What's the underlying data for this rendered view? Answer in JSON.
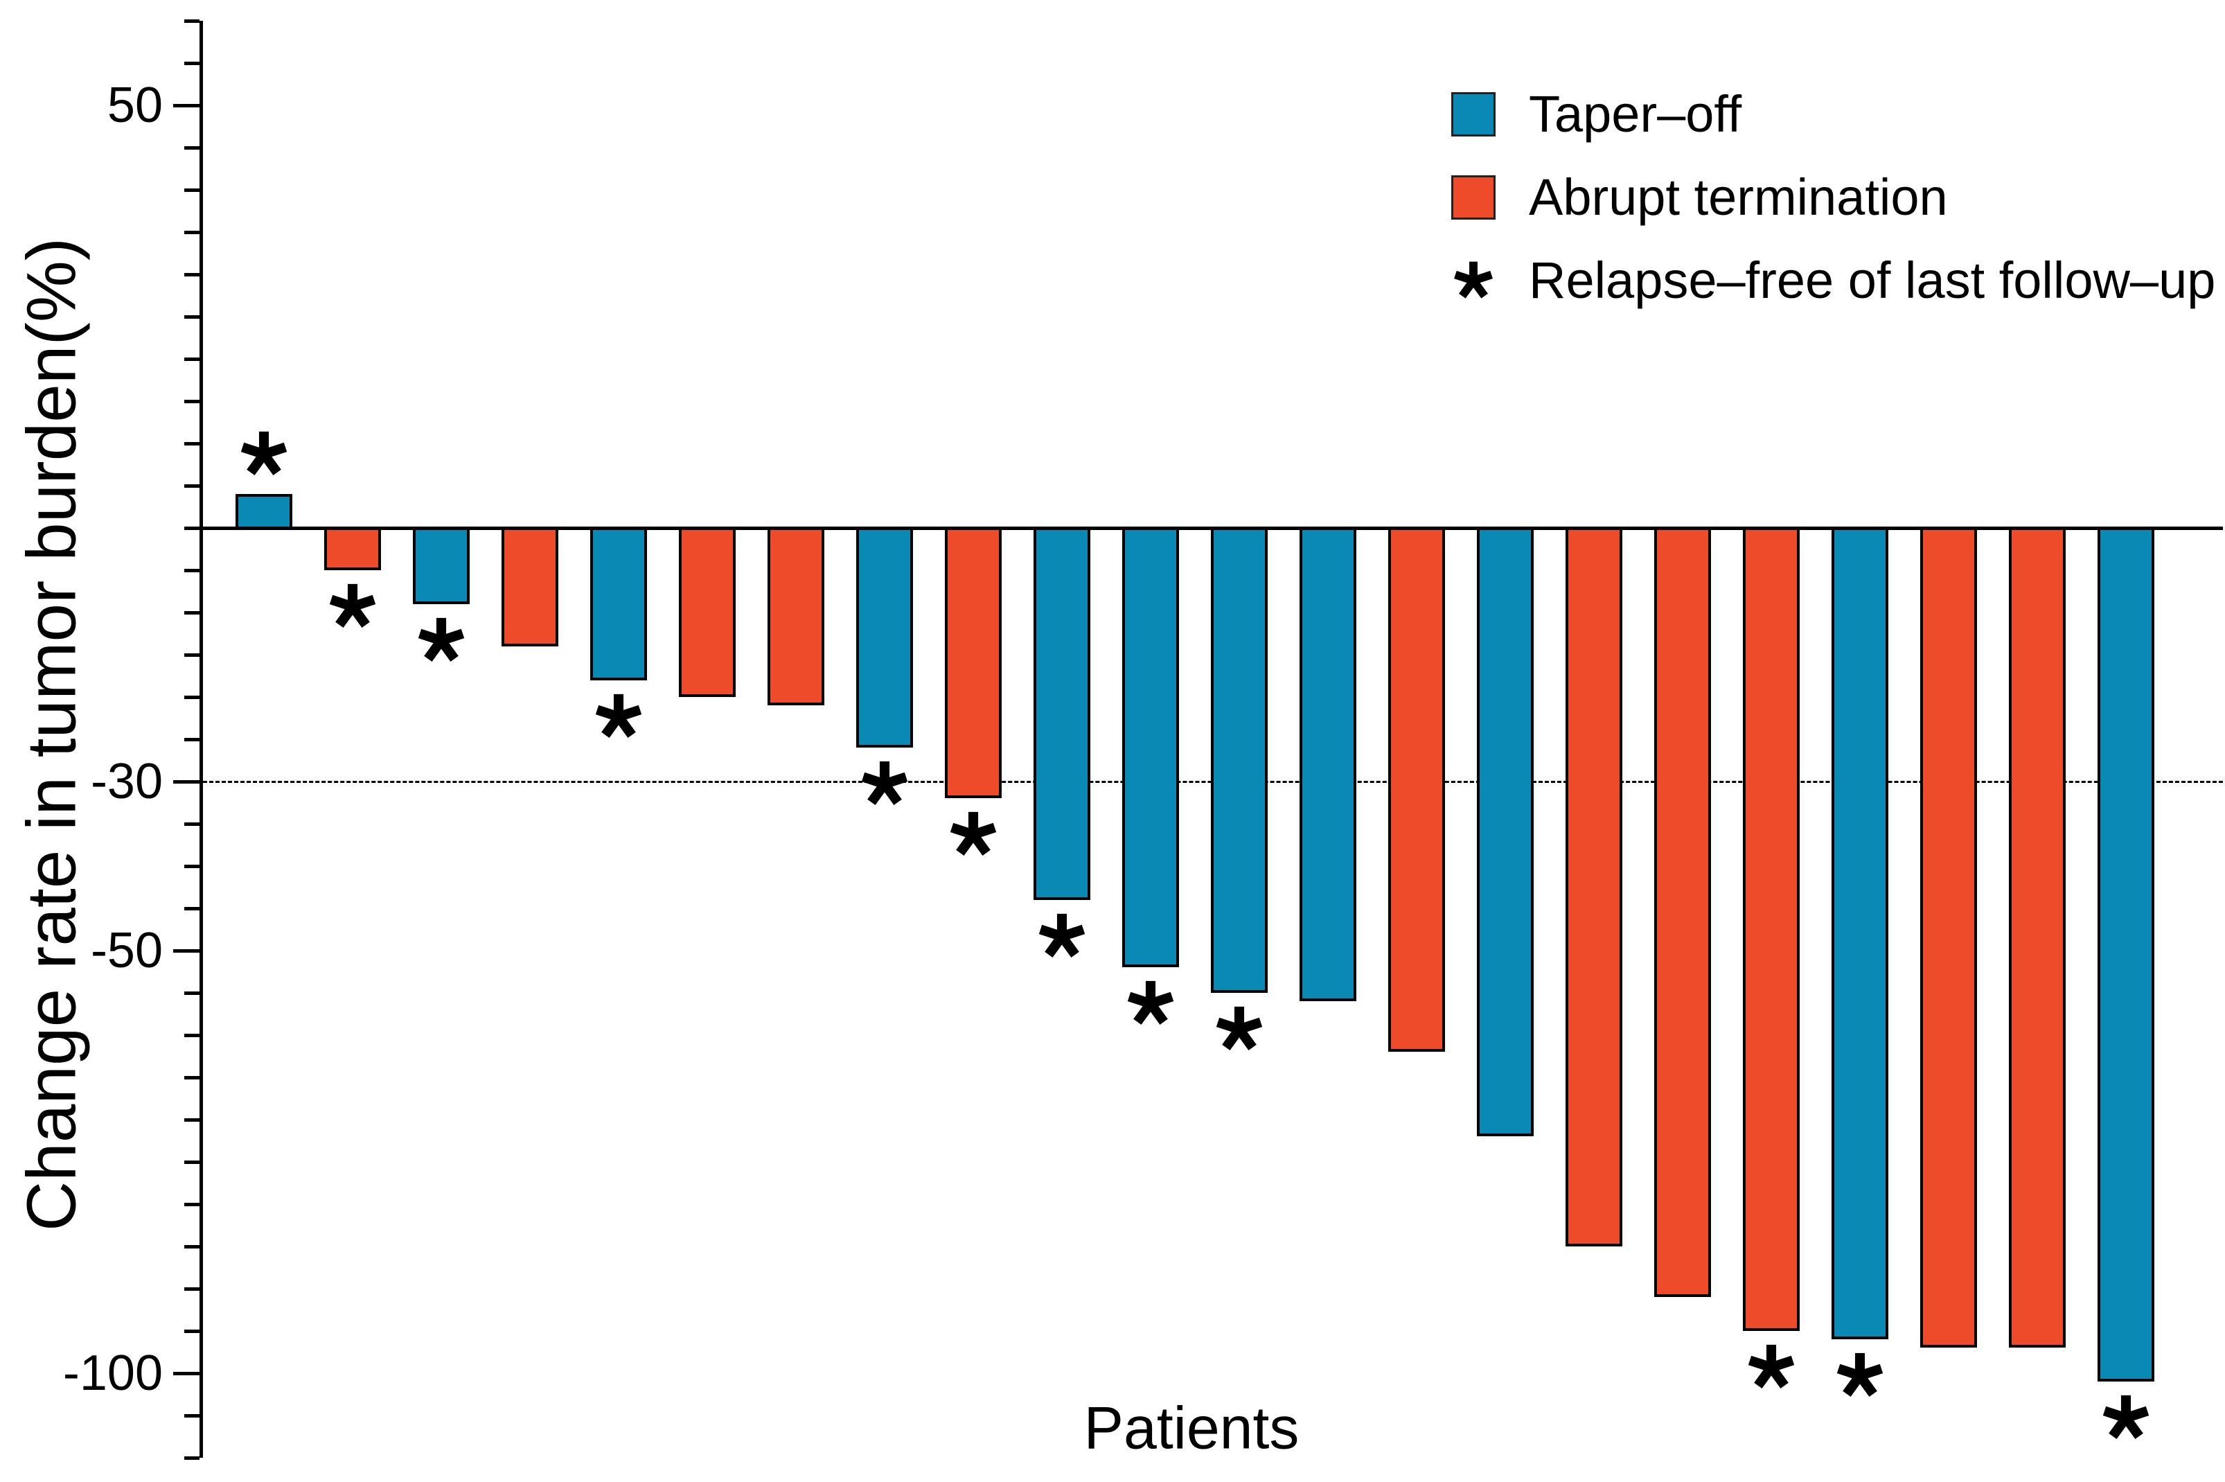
{
  "chart_data": {
    "type": "bar",
    "title": "",
    "xlabel": "Patients",
    "ylabel": "Change rate in tumor burden(%)",
    "ylim": [
      -110,
      60
    ],
    "grid": false,
    "legend_position": "top-right",
    "reference_line_value": -30,
    "axis_tick_step": 5,
    "yticks_labeled": [
      {
        "value": 50,
        "label": "50"
      },
      {
        "value": -30,
        "label": "-30"
      },
      {
        "value": -50,
        "label": "-50"
      },
      {
        "value": -100,
        "label": "-100"
      }
    ],
    "legend": [
      {
        "key": "taper_off",
        "label": "Taper–off",
        "marker": "swatch",
        "color": "#0b89b5"
      },
      {
        "key": "abrupt_termination",
        "label": "Abrupt termination",
        "marker": "swatch",
        "color": "#ee4b2b"
      },
      {
        "key": "relapse_free",
        "label": "Relapse–free of last follow–up",
        "marker": "asterisk",
        "color": "#000000"
      }
    ],
    "series_colors": {
      "taper_off": "#0b89b5",
      "abrupt_termination": "#ee4b2b"
    },
    "categories_note": "individual patients, unlabeled on x-axis",
    "patients": [
      {
        "value": 4,
        "group": "taper_off",
        "relapse_free": true
      },
      {
        "value": -5,
        "group": "abrupt_termination",
        "relapse_free": true
      },
      {
        "value": -9,
        "group": "taper_off",
        "relapse_free": true
      },
      {
        "value": -14,
        "group": "abrupt_termination",
        "relapse_free": false
      },
      {
        "value": -18,
        "group": "taper_off",
        "relapse_free": true
      },
      {
        "value": -20,
        "group": "abrupt_termination",
        "relapse_free": false
      },
      {
        "value": -21,
        "group": "abrupt_termination",
        "relapse_free": false
      },
      {
        "value": -26,
        "group": "taper_off",
        "relapse_free": true
      },
      {
        "value": -32,
        "group": "abrupt_termination",
        "relapse_free": true
      },
      {
        "value": -44,
        "group": "taper_off",
        "relapse_free": true
      },
      {
        "value": -52,
        "group": "taper_off",
        "relapse_free": true
      },
      {
        "value": -55,
        "group": "taper_off",
        "relapse_free": true
      },
      {
        "value": -56,
        "group": "taper_off",
        "relapse_free": false
      },
      {
        "value": -62,
        "group": "abrupt_termination",
        "relapse_free": false
      },
      {
        "value": -72,
        "group": "taper_off",
        "relapse_free": false
      },
      {
        "value": -85,
        "group": "abrupt_termination",
        "relapse_free": false
      },
      {
        "value": -91,
        "group": "abrupt_termination",
        "relapse_free": false
      },
      {
        "value": -95,
        "group": "abrupt_termination",
        "relapse_free": true
      },
      {
        "value": -96,
        "group": "taper_off",
        "relapse_free": true
      },
      {
        "value": -97,
        "group": "abrupt_termination",
        "relapse_free": false
      },
      {
        "value": -97,
        "group": "abrupt_termination",
        "relapse_free": false
      },
      {
        "value": -101,
        "group": "taper_off",
        "relapse_free": true
      }
    ]
  }
}
